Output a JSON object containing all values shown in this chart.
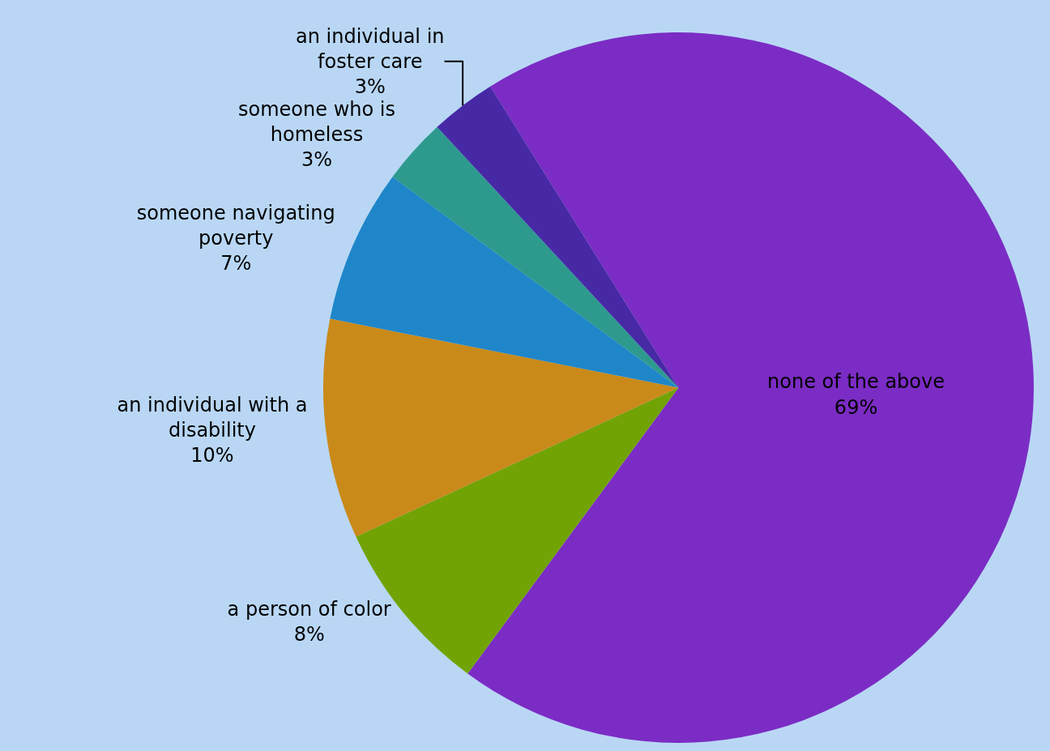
{
  "chart_data": {
    "type": "pie",
    "categories": [
      "none of the above",
      "a person of color",
      "an individual with a disability",
      "someone navigating poverty",
      "someone who is homeless",
      "an individual in foster care"
    ],
    "values": [
      69,
      8,
      10,
      7,
      3,
      3
    ],
    "value_labels": [
      "69%",
      "8%",
      "10%",
      "7%",
      "3%",
      "3%"
    ],
    "colors": [
      "#7b2cc4",
      "#72a304",
      "#c98a1a",
      "#1f86c9",
      "#2e9a8e",
      "#4729a6"
    ],
    "legend": false
  }
}
